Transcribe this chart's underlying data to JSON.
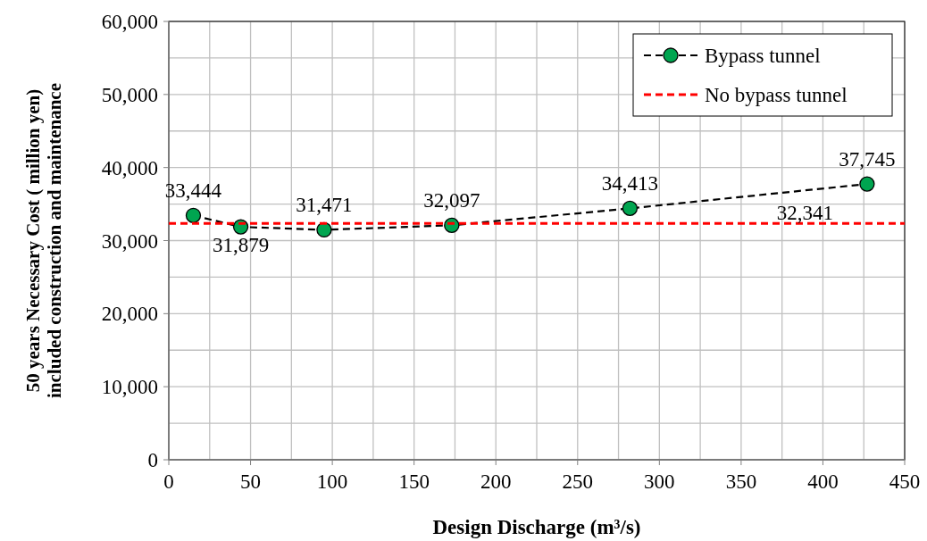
{
  "chart_data": {
    "type": "line",
    "xlabel": "Design Discharge (m³/s)",
    "ylabel": "50 years Necessary Cost ( million yen)\nincluded construction and maintenance",
    "xlim": [
      0,
      450
    ],
    "xticks": [
      0,
      {
        "value": 25,
        "label": null
      },
      50,
      {
        "value": 75,
        "label": null
      },
      100,
      {
        "value": 125,
        "label": null
      },
      150,
      {
        "value": 175,
        "label": null
      },
      200,
      {
        "value": 225,
        "label": null
      },
      250,
      {
        "value": 275,
        "label": null
      },
      300,
      {
        "value": 325,
        "label": null
      },
      350,
      {
        "value": 375,
        "label": null
      },
      400,
      {
        "value": 425,
        "label": null
      },
      450
    ],
    "ylim": [
      0,
      60000
    ],
    "yticks": [
      {
        "value": 0,
        "label": "0"
      },
      {
        "value": 5000,
        "label": null
      },
      {
        "value": 10000,
        "label": "10,000"
      },
      {
        "value": 15000,
        "label": null
      },
      {
        "value": 20000,
        "label": "20,000"
      },
      {
        "value": 25000,
        "label": null
      },
      {
        "value": 30000,
        "label": "30,000"
      },
      {
        "value": 35000,
        "label": null
      },
      {
        "value": 40000,
        "label": "40,000"
      },
      {
        "value": 45000,
        "label": null
      },
      {
        "value": 50000,
        "label": "50,000"
      },
      {
        "value": 55000,
        "label": null
      },
      {
        "value": 60000,
        "label": "60,000"
      }
    ],
    "grid": true,
    "legend": "top right",
    "series": [
      {
        "name": "Bypass tunnel",
        "color": "#000000",
        "marker": "circle",
        "line_style": "dashed",
        "x": [
          15,
          44,
          95,
          173,
          282,
          427
        ],
        "values": [
          33444,
          31879,
          31471,
          32097,
          34413,
          37745
        ],
        "value_labels": [
          "33,444",
          "31,879",
          "31,471",
          "32,097",
          "34,413",
          "37,745"
        ]
      },
      {
        "name": "No bypass tunnel",
        "color": "#ff0000",
        "marker": "none",
        "line_style": "dashed",
        "x": [
          0,
          389,
          450
        ],
        "values": [
          32341,
          32341,
          32341
        ],
        "value_labels": [
          null,
          "32,341",
          null
        ]
      }
    ]
  }
}
